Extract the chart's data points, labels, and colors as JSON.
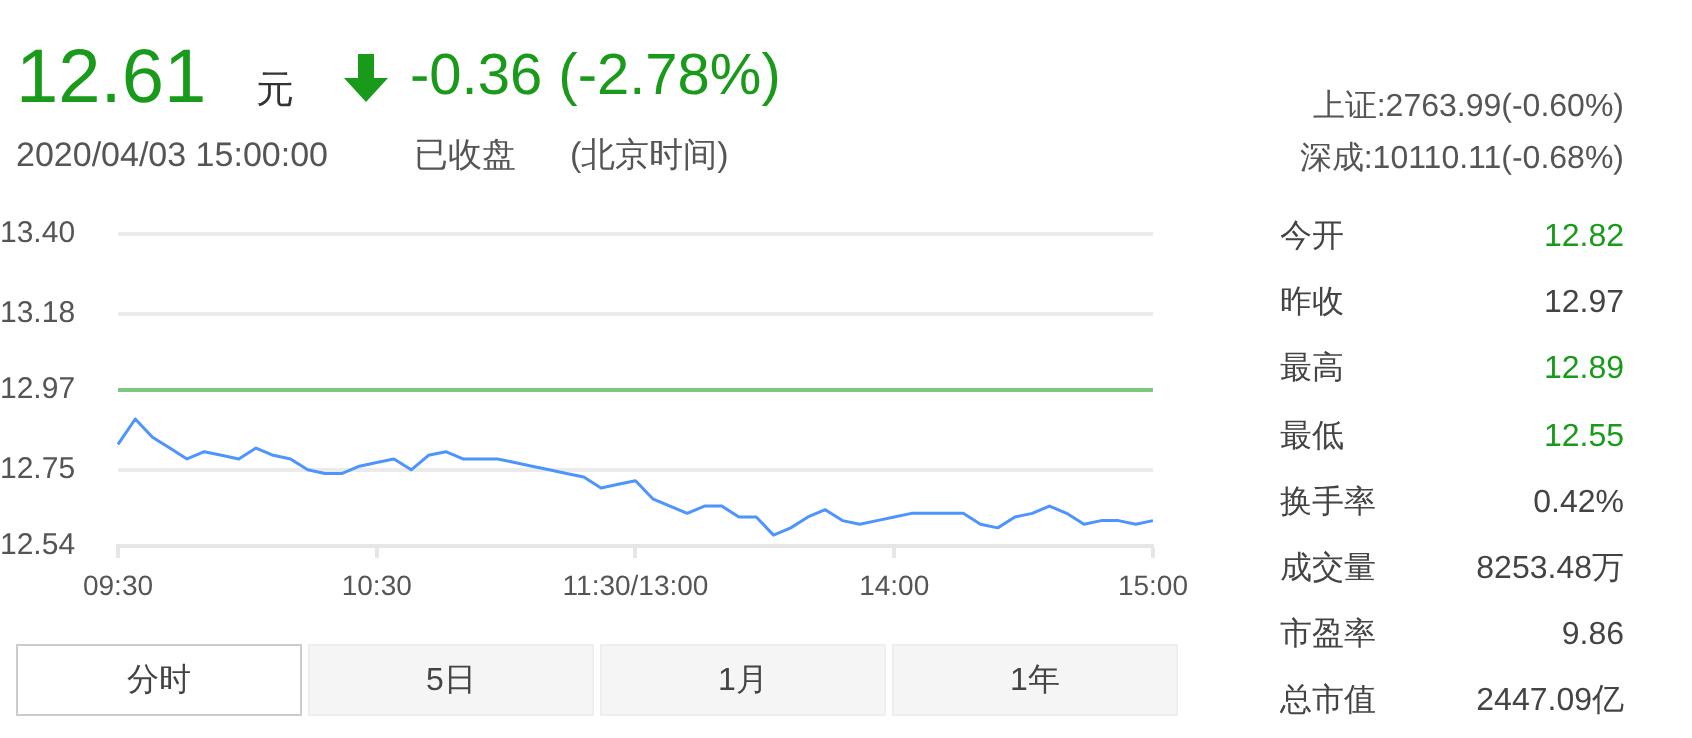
{
  "chart_data": {
    "type": "line",
    "title": "12.61",
    "annotations": [
      "元",
      "-0.36 (-2.78%)",
      "2020/04/03 15:00:00",
      "已收盘",
      "(北京时间)",
      "上证:2763.99(-0.60%)",
      "深成:10110.11(-0.68%)",
      "今开",
      "12.82",
      "昨收",
      "12.97",
      "最高",
      "12.89",
      "最低",
      "12.55",
      "换手率",
      "0.42%",
      "成交量",
      "8253.48万",
      "市盈率",
      "9.86",
      "总市值",
      "2447.09亿",
      "分时",
      "5日",
      "1月",
      "1年"
    ],
    "categories": [
      "09:30",
      null,
      null,
      null,
      null,
      null,
      null,
      null,
      null,
      null,
      null,
      null,
      null,
      null,
      null,
      "10:30",
      null,
      null,
      null,
      null,
      null,
      null,
      null,
      null,
      null,
      null,
      null,
      null,
      null,
      null,
      "11:30/13:00",
      null,
      null,
      null,
      null,
      null,
      null,
      null,
      null,
      null,
      null,
      null,
      null,
      null,
      null,
      "14:00",
      null,
      null,
      null,
      null,
      null,
      null,
      null,
      null,
      null,
      null,
      null,
      null,
      null,
      null,
      "15:00"
    ],
    "series": [
      {
        "color": "#4d94ff",
        "values": [
          12.82,
          12.89,
          12.84,
          12.81,
          12.78,
          12.8,
          12.79,
          12.78,
          12.81,
          12.79,
          12.78,
          12.75,
          12.74,
          12.74,
          12.76,
          12.77,
          12.78,
          12.75,
          12.79,
          12.8,
          12.78,
          12.78,
          12.78,
          12.77,
          12.76,
          12.75,
          12.74,
          12.73,
          12.7,
          12.71,
          12.72,
          12.67,
          12.65,
          12.63,
          12.65,
          12.65,
          12.62,
          12.62,
          12.57,
          12.59,
          12.62,
          12.64,
          12.61,
          12.6,
          12.61,
          12.62,
          12.63,
          12.63,
          12.63,
          12.63,
          12.6,
          12.59,
          12.62,
          12.63,
          12.65,
          12.63,
          12.6,
          12.61,
          12.61,
          12.6,
          12.61
        ]
      }
    ],
    "ylim": [
      12.54,
      13.4
    ],
    "yticks": [
      {
        "value": 12.54,
        "label": "12.54"
      },
      {
        "value": 12.75,
        "label": "12.75"
      },
      {
        "value": 12.97,
        "label": "12.97"
      },
      {
        "value": 13.18,
        "label": "13.18"
      },
      {
        "value": 13.4,
        "label": "13.40"
      }
    ],
    "ref_lines": [
      {
        "axis": "y",
        "value": 12.97,
        "color": "#7dc87d"
      }
    ],
    "grid": "y",
    "legend": false,
    "marker": "none",
    "line_style": "solid"
  }
}
